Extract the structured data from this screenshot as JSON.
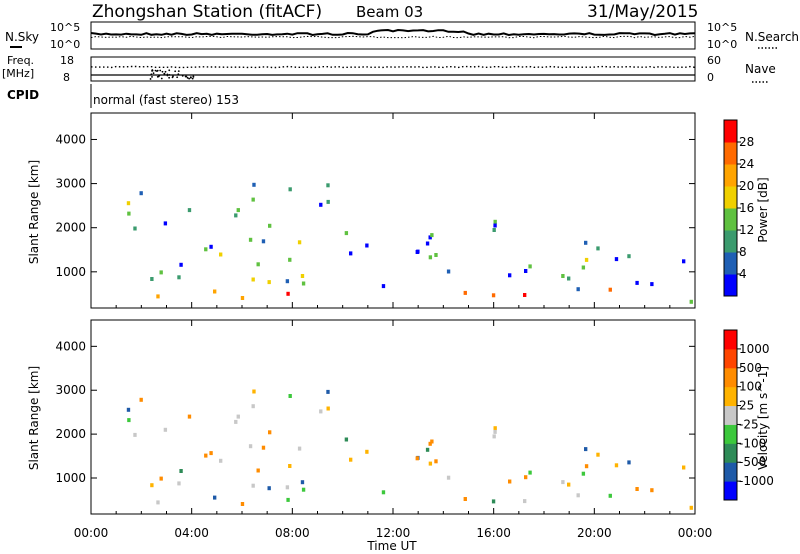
{
  "header": {
    "station": "Zhongshan Station (fitACF)",
    "beam": "Beam 03",
    "date": "31/May/2015"
  },
  "top_panels": {
    "nsky_label": "N.Sky",
    "nsearch_label": "N.Search",
    "nsky_ticks": [
      "10^5",
      "10^0"
    ],
    "nsearch_ticks": [
      "10^5",
      "10^0"
    ],
    "freq_label_line1": "Freq.",
    "freq_label_line2": "[MHz]",
    "freq_ticks": [
      "18",
      "8"
    ],
    "nave_label": "Nave",
    "nave_ticks": [
      "60",
      "0"
    ],
    "cpid_label": "CPID",
    "cpid_text": "normal (fast stereo) 153"
  },
  "colors": {
    "power_scale": [
      "#0000ff",
      "#1f5fb4",
      "#3b9b6e",
      "#5fc140",
      "#f0d000",
      "#ffa400",
      "#ff6a00",
      "#ff0000"
    ],
    "velocity_scale": [
      "#ff0000",
      "#ff4500",
      "#ff8c00",
      "#ffb300",
      "#c8c8c8",
      "#3cc83c",
      "#2e8b57",
      "#1e5aa8",
      "#0000ff"
    ]
  },
  "chart_data": [
    {
      "type": "heatmap",
      "title": "",
      "xlabel": "Time UT",
      "ylabel": "Slant Range [km]",
      "x_range": [
        "00:00",
        "24:00"
      ],
      "x_ticks": [
        "00:00",
        "04:00",
        "08:00",
        "12:00",
        "16:00",
        "20:00",
        "00:00"
      ],
      "ylim": [
        180,
        4600
      ],
      "y_ticks": [
        "1000",
        "2000",
        "3000",
        "4000"
      ],
      "colorbar": {
        "label": "Power [dB]",
        "ticks": [
          "4",
          "8",
          "12",
          "16",
          "20",
          "24",
          "28"
        ],
        "range": [
          0,
          30
        ]
      }
    },
    {
      "type": "heatmap",
      "title": "",
      "xlabel": "Time UT",
      "ylabel": "Slant Range [km]",
      "x_range": [
        "00:00",
        "24:00"
      ],
      "x_ticks": [
        "00:00",
        "04:00",
        "08:00",
        "12:00",
        "16:00",
        "20:00",
        "00:00"
      ],
      "ylim": [
        180,
        4600
      ],
      "y_ticks": [
        "1000",
        "2000",
        "3000",
        "4000"
      ],
      "colorbar": {
        "label": "Velocity [m s^-1]",
        "ticks": [
          "1000",
          "500",
          "100",
          "25",
          "-25",
          "-100",
          "-500",
          "-1000"
        ]
      }
    }
  ]
}
